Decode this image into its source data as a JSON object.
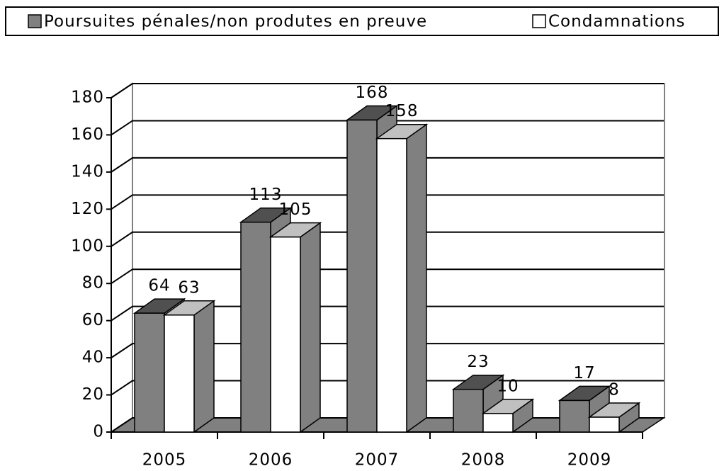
{
  "chart_data": {
    "type": "bar3d",
    "categories": [
      "2005",
      "2006",
      "2007",
      "2008",
      "2009"
    ],
    "series": [
      {
        "name": "Poursuites pénales/non produtes en preuve",
        "color": "#808080",
        "values": [
          64,
          113,
          168,
          23,
          17
        ]
      },
      {
        "name": "Condamnations",
        "color": "#ffffff",
        "values": [
          63,
          105,
          158,
          10,
          8
        ]
      }
    ],
    "ylim": [
      0,
      180
    ],
    "yticks": [
      0,
      20,
      40,
      60,
      80,
      100,
      120,
      140,
      160,
      180
    ],
    "grid": true,
    "legend": "top"
  }
}
